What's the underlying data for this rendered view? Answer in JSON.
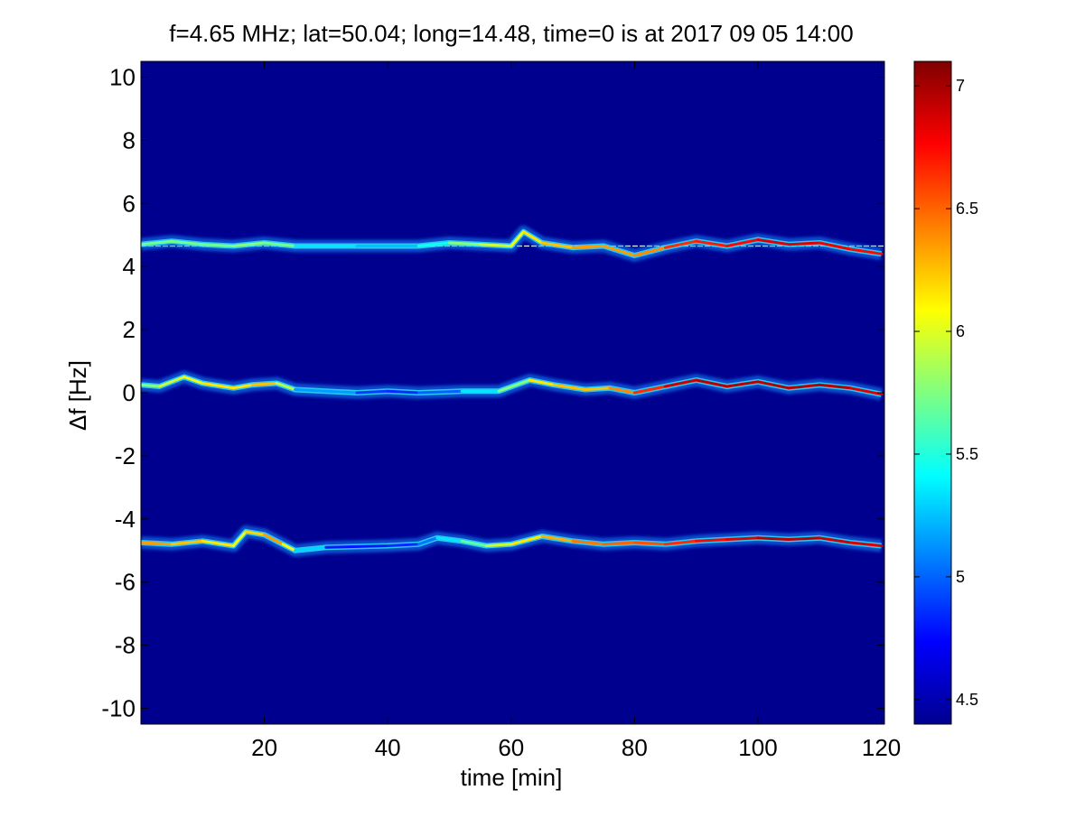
{
  "chart_data": {
    "type": "heatmap",
    "title": "f=4.65 MHz;  lat=50.04; long=14.48, time=0 is at 2017 09 05 14:00",
    "xlabel": "time [min]",
    "ylabel": "Δf [Hz]",
    "xlim": [
      0,
      120.5
    ],
    "ylim": [
      -10.5,
      10.5
    ],
    "xticks": [
      20,
      40,
      60,
      80,
      100,
      120
    ],
    "yticks": [
      10,
      8,
      6,
      4,
      2,
      0,
      -2,
      -4,
      -6,
      -8,
      -10
    ],
    "colorbar": {
      "colormap": "jet",
      "clim": [
        4.4,
        7.1
      ],
      "ticks": [
        4.5,
        5,
        5.5,
        6,
        6.5,
        7
      ]
    },
    "grid": false,
    "background_value": 4.4,
    "traces": [
      {
        "name": "upper",
        "points": [
          [
            0,
            4.7
          ],
          [
            5,
            4.8
          ],
          [
            10,
            4.7
          ],
          [
            15,
            4.65
          ],
          [
            20,
            4.75
          ],
          [
            25,
            4.65
          ],
          [
            35,
            4.65
          ],
          [
            45,
            4.65
          ],
          [
            50,
            4.75
          ],
          [
            55,
            4.7
          ],
          [
            60,
            4.65
          ],
          [
            62,
            5.1
          ],
          [
            65,
            4.75
          ],
          [
            70,
            4.6
          ],
          [
            75,
            4.65
          ],
          [
            80,
            4.35
          ],
          [
            85,
            4.6
          ],
          [
            90,
            4.8
          ],
          [
            95,
            4.65
          ],
          [
            100,
            4.85
          ],
          [
            105,
            4.7
          ],
          [
            110,
            4.75
          ],
          [
            115,
            4.55
          ],
          [
            120,
            4.4
          ]
        ],
        "peak": [
          5.8,
          5.6,
          5.8,
          5.6,
          5.9,
          5.5,
          5.2,
          5.3,
          5.6,
          5.9,
          6.0,
          6.1,
          6.2,
          6.3,
          6.4,
          6.3,
          6.5,
          6.8,
          6.6,
          6.9,
          6.8,
          6.9,
          6.7,
          6.8
        ]
      },
      {
        "name": "middle",
        "points": [
          [
            0,
            0.25
          ],
          [
            3,
            0.2
          ],
          [
            7,
            0.5
          ],
          [
            10,
            0.3
          ],
          [
            15,
            0.15
          ],
          [
            18,
            0.25
          ],
          [
            22,
            0.3
          ],
          [
            25,
            0.1
          ],
          [
            35,
            0.0
          ],
          [
            40,
            0.05
          ],
          [
            45,
            0.0
          ],
          [
            52,
            0.05
          ],
          [
            58,
            0.05
          ],
          [
            63,
            0.4
          ],
          [
            67,
            0.25
          ],
          [
            72,
            0.1
          ],
          [
            76,
            0.15
          ],
          [
            80,
            0.0
          ],
          [
            85,
            0.2
          ],
          [
            90,
            0.4
          ],
          [
            95,
            0.2
          ],
          [
            100,
            0.35
          ],
          [
            105,
            0.15
          ],
          [
            110,
            0.25
          ],
          [
            115,
            0.15
          ],
          [
            120,
            -0.05
          ]
        ],
        "peak": [
          5.6,
          5.9,
          6.0,
          6.1,
          6.2,
          6.1,
          6.4,
          5.4,
          4.9,
          4.9,
          4.8,
          5.2,
          5.5,
          6.0,
          6.3,
          6.2,
          6.3,
          6.5,
          6.8,
          7.0,
          6.9,
          7.0,
          6.9,
          7.0,
          6.9,
          6.8
        ]
      },
      {
        "name": "lower",
        "points": [
          [
            0,
            -4.75
          ],
          [
            5,
            -4.8
          ],
          [
            10,
            -4.7
          ],
          [
            15,
            -4.85
          ],
          [
            17,
            -4.4
          ],
          [
            20,
            -4.5
          ],
          [
            23,
            -4.8
          ],
          [
            25,
            -5.0
          ],
          [
            30,
            -4.9
          ],
          [
            40,
            -4.85
          ],
          [
            45,
            -4.8
          ],
          [
            48,
            -4.6
          ],
          [
            52,
            -4.7
          ],
          [
            56,
            -4.85
          ],
          [
            60,
            -4.8
          ],
          [
            65,
            -4.55
          ],
          [
            70,
            -4.7
          ],
          [
            75,
            -4.8
          ],
          [
            80,
            -4.75
          ],
          [
            85,
            -4.8
          ],
          [
            90,
            -4.7
          ],
          [
            95,
            -4.65
          ],
          [
            100,
            -4.6
          ],
          [
            105,
            -4.65
          ],
          [
            110,
            -4.6
          ],
          [
            115,
            -4.75
          ],
          [
            120,
            -4.85
          ]
        ],
        "peak": [
          6.4,
          6.3,
          6.2,
          6.1,
          6.0,
          6.4,
          6.3,
          5.8,
          4.8,
          4.8,
          4.9,
          5.2,
          5.5,
          5.8,
          6.1,
          6.2,
          6.4,
          6.5,
          6.5,
          6.6,
          6.7,
          6.8,
          6.9,
          7.0,
          6.9,
          6.9,
          6.8
        ]
      }
    ],
    "reference_line": {
      "y": 4.65,
      "x_range": [
        0,
        120.5
      ]
    }
  }
}
